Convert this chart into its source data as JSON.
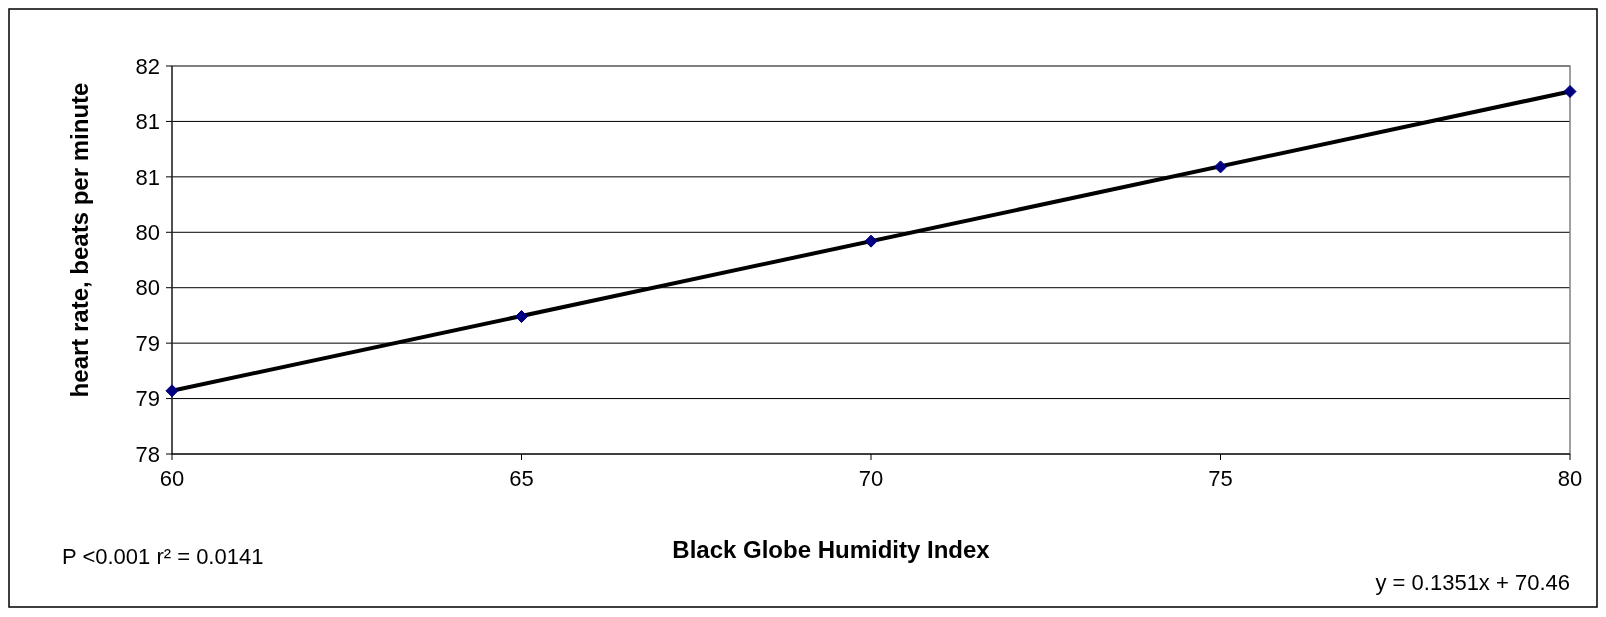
{
  "chart_data": {
    "type": "scatter",
    "xlabel": "Black Globe Humidity Index",
    "ylabel": "heart rate, beats per minute",
    "x": [
      60,
      65,
      70,
      75,
      80
    ],
    "series": [
      {
        "color": "#000080",
        "marker": "diamond",
        "values": [
          78.57,
          79.24,
          79.92,
          80.59,
          81.27
        ]
      },
      {
        "type": "line",
        "color": "#000000",
        "x": [
          60,
          80
        ],
        "values": [
          78.57,
          81.27
        ],
        "marker": "none",
        "line_style": "solid"
      }
    ],
    "xlim": [
      60,
      80
    ],
    "xticks": [
      60,
      65,
      70,
      75,
      80
    ],
    "ylim": [
      78,
      81.5
    ],
    "yticks": [
      {
        "value": 78,
        "label": "78"
      },
      {
        "value": 78.5,
        "label": "79"
      },
      {
        "value": 79,
        "label": "79"
      },
      {
        "value": 79.5,
        "label": "80"
      },
      {
        "value": 80,
        "label": "80"
      },
      {
        "value": 80.5,
        "label": "81"
      },
      {
        "value": 81,
        "label": "81"
      },
      {
        "value": 81.5,
        "label": "82"
      }
    ],
    "grid": "y",
    "annotations": [
      "P <0.001  r² = 0.0141",
      "y = 0.1351x + 70.46"
    ]
  }
}
